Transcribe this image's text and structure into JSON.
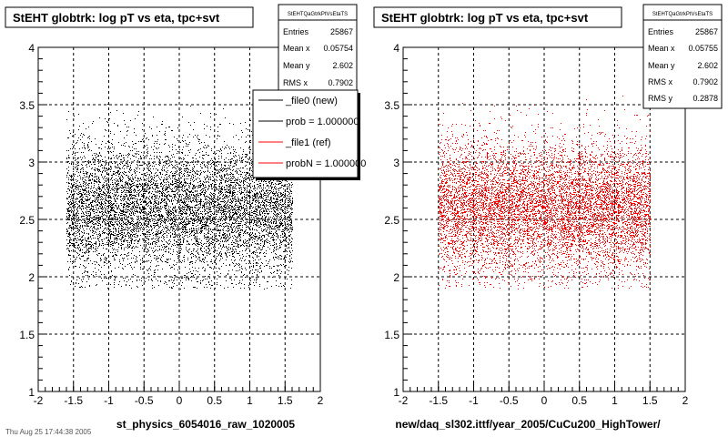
{
  "chart_data": [
    {
      "type": "scatter",
      "title": "StEHT globtrk: log pT vs eta, tpc+svt",
      "xlabel": "st_physics_6054016_raw_1020005",
      "ylabel": "",
      "xlim": [
        -2,
        2
      ],
      "ylim": [
        1,
        4
      ],
      "grid": true,
      "marker_color": "#000000",
      "x_ticks": [
        "-2",
        "-1.5",
        "-1",
        "-0.5",
        "0",
        "0.5",
        "1",
        "1.5",
        "2"
      ],
      "y_ticks": [
        "1",
        "1.5",
        "2",
        "2.5",
        "3",
        "3.5",
        "4"
      ],
      "distribution": {
        "x_range": [
          -1.6,
          1.6
        ],
        "y_center": 2.602,
        "y_spread": 0.2878
      },
      "stats": {
        "name": "StEHTQaGtrkPtVsEtaTS",
        "rows": [
          {
            "label": "Entries",
            "value": "25867"
          },
          {
            "label": "Mean x",
            "value": "0.05754"
          },
          {
            "label": "Mean y",
            "value": "2.602"
          },
          {
            "label": "RMS x",
            "value": "0.7902"
          }
        ]
      },
      "legend": {
        "placement": "top-right",
        "entries": [
          {
            "label": "_file0 (new)",
            "color": "#000000"
          },
          {
            "label": "prob = 1.000000",
            "color": "#000000"
          },
          {
            "label": "_file1 (ref)",
            "color": "#ff0000"
          },
          {
            "label": "probN = 1.000000",
            "color": "#ff0000"
          }
        ]
      }
    },
    {
      "type": "scatter",
      "title": "StEHT globtrk: log pT vs eta, tpc+svt",
      "xlabel": "new/daq_sl302.ittf/year_2005/CuCu200_HighTower/",
      "ylabel": "",
      "xlim": [
        -2,
        2
      ],
      "ylim": [
        1,
        4
      ],
      "grid": true,
      "marker_color": "#ff0000",
      "x_ticks": [
        "-2",
        "-1.5",
        "-1",
        "-0.5",
        "0",
        "0.5",
        "1",
        "1.5",
        "2"
      ],
      "y_ticks": [
        "1",
        "1.5",
        "2",
        "2.5",
        "3",
        "3.5",
        "4"
      ],
      "distribution": {
        "x_range": [
          -1.5,
          1.5
        ],
        "y_center": 2.602,
        "y_spread": 0.2878
      },
      "stats": {
        "name": "StEHTQaGtrkPtVsEtaTS",
        "rows": [
          {
            "label": "Entries",
            "value": "25867"
          },
          {
            "label": "Mean x",
            "value": "0.05755"
          },
          {
            "label": "Mean y",
            "value": "2.602"
          },
          {
            "label": "RMS x",
            "value": "0.7902"
          },
          {
            "label": "RMS y",
            "value": "0.2878"
          }
        ]
      }
    }
  ],
  "footer_text": "Thu Aug 25 17:44:38 2005"
}
